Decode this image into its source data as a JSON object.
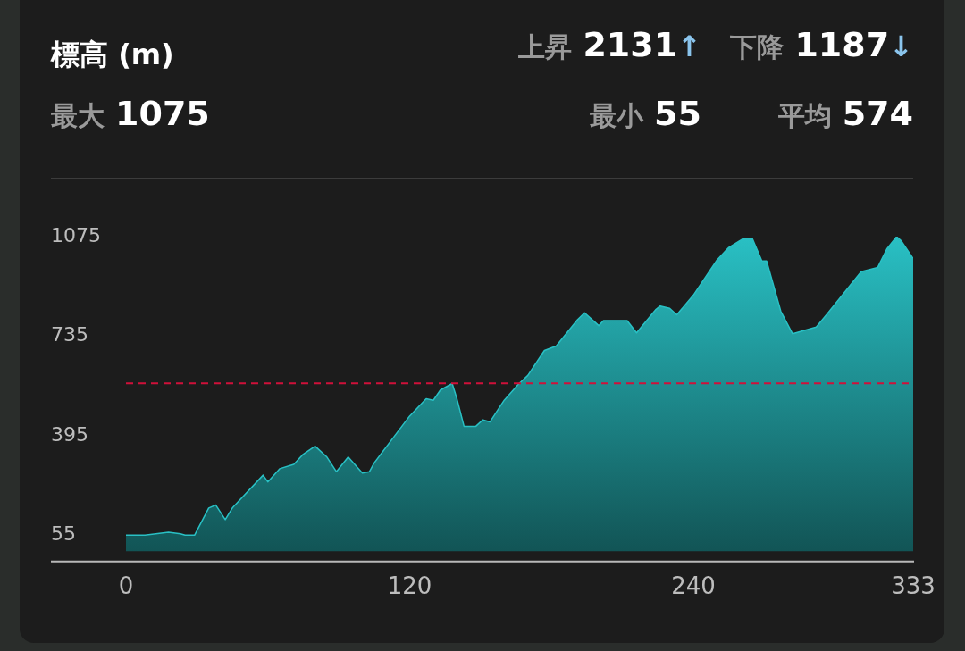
{
  "chart_data": {
    "type": "area",
    "title": "標高 (m)",
    "annotations": [
      "上昇 2131↑",
      "下降 1187↓",
      "最大 1075",
      "最小 55",
      "平均 574"
    ],
    "x": [
      0,
      8,
      18,
      23,
      25,
      29,
      35,
      38,
      42,
      45,
      58,
      60,
      65,
      71,
      75,
      80,
      85,
      89,
      94,
      100,
      103,
      105,
      120,
      127,
      130,
      133,
      138,
      140,
      143,
      148,
      151,
      154,
      160,
      166,
      170,
      177,
      182,
      191,
      194,
      200,
      202,
      212,
      216,
      218,
      224,
      226,
      230,
      233,
      240,
      250,
      255,
      261,
      265,
      269,
      271,
      277,
      282,
      292,
      297,
      303,
      311,
      318,
      322,
      326,
      328,
      333
    ],
    "series": [
      {
        "color": "#29c0c4",
        "values": [
          55,
          55,
          65,
          60,
          55,
          55,
          148,
          158,
          108,
          148,
          260,
          237,
          282,
          297,
          332,
          359,
          322,
          272,
          322,
          267,
          272,
          302,
          462,
          521,
          516,
          551,
          573,
          521,
          427,
          427,
          449,
          442,
          516,
          571,
          601,
          686,
          701,
          791,
          815,
          771,
          788,
          788,
          746,
          766,
          825,
          838,
          830,
          808,
          875,
          995,
          1038,
          1068,
          1068,
          992,
          992,
          820,
          743,
          766,
          815,
          875,
          955,
          970,
          1035,
          1075,
          1060,
          1000
        ]
      }
    ],
    "xlim": [
      0,
      333
    ],
    "xticks": [
      0,
      120,
      240,
      333
    ],
    "ylim": [
      -35,
      1075
    ],
    "yticks": [
      55,
      395,
      735,
      1075
    ],
    "grid": false,
    "legend": false,
    "marker": "none",
    "ref_lines": [
      {
        "axis": "y",
        "value": 574,
        "color": "#d0103a",
        "line_style": "dashed"
      }
    ]
  }
}
